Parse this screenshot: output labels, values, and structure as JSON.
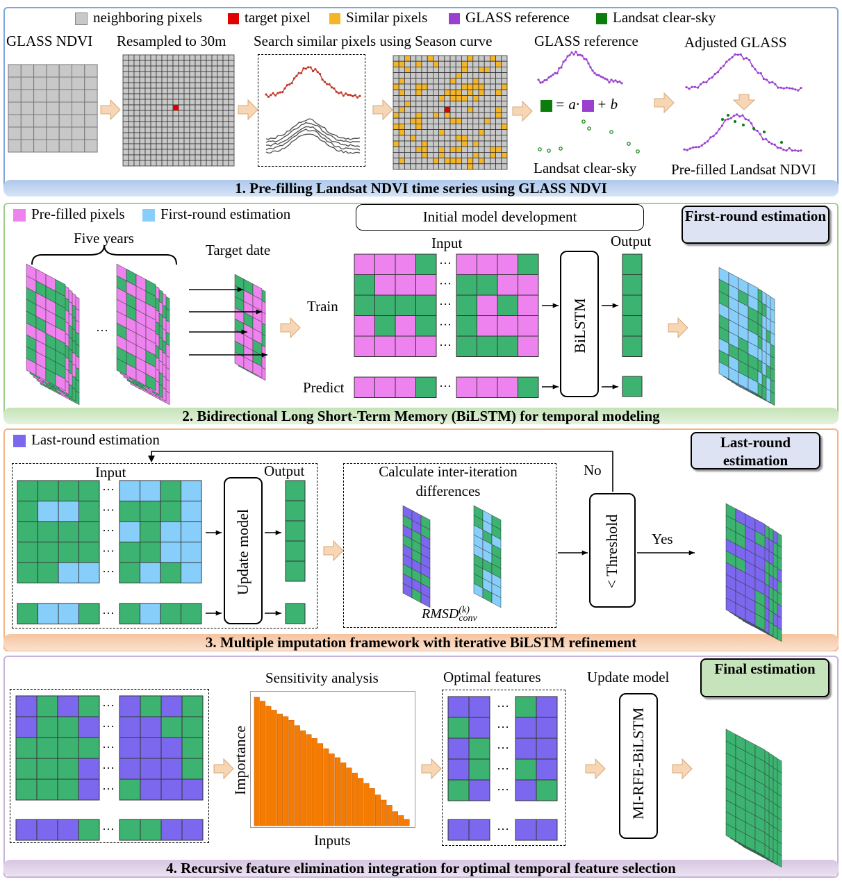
{
  "colors": {
    "green": "#3cb371",
    "pink": "#ee82ee",
    "lightblue": "#87cefa",
    "purple": "#7b68ee",
    "orange": "#f57c00",
    "gray": "#c8c8c8",
    "red": "#e00000",
    "yellow": "#f4b526",
    "darkgreen": "#0a7d0a",
    "violet": "#9a3fd0"
  },
  "panel1": {
    "legend": [
      "neighboring pixels",
      "target pixel",
      "Similar pixels",
      "GLASS reference",
      "Landsat clear-sky"
    ],
    "labels": {
      "glass_ndvi": "GLASS NDVI",
      "resampled": "Resampled to 30m",
      "search": "Search similar pixels using Season curve",
      "glass_ref": "GLASS reference",
      "adjusted": "Adjusted GLASS",
      "landsat_clear": "Landsat clear-sky",
      "prefilled": "Pre-filled Landsat NDVI",
      "equation_mid": "= a·",
      "equation_end": "+ b"
    },
    "title": "1. Pre-filling Landsat NDVI time series using GLASS NDVI"
  },
  "panel2": {
    "legend": [
      "Pre-filled pixels",
      "First-round estimation"
    ],
    "five_years": "Five years",
    "target_date": "Target date",
    "initial_model": "Initial model development",
    "input": "Input",
    "output": "Output",
    "train": "Train",
    "predict": "Predict",
    "bilstm": "BiLSTM",
    "estimation": "First-round estimation",
    "title": "2. Bidirectional Long Short-Term Memory (BiLSTM) for temporal modeling"
  },
  "panel3": {
    "legend": "Last-round estimation",
    "input": "Input",
    "output": "Output",
    "update_model": "Update model",
    "calc": "Calculate inter-iteration differences",
    "rmsd": "RMSD",
    "rmsd_sup": "(k)",
    "rmsd_sub": "conv",
    "no": "No",
    "yes": "Yes",
    "threshold": "< Threshold",
    "estimation": "Last-round estimation",
    "title": "3. Multiple imputation framework with iterative BiLSTM refinement"
  },
  "panel4": {
    "sensitivity": "Sensitivity analysis",
    "optimal": "Optimal features",
    "update_model": "Update model",
    "importance": "Importance",
    "inputs": "Inputs",
    "mi_rfe": "MI-RFE-BiLSTM",
    "estimation": "Final estimation",
    "title": "4. Recursive feature elimination integration for optimal temporal feature selection",
    "importance_values": [
      1.0,
      0.97,
      0.93,
      0.9,
      0.87,
      0.85,
      0.82,
      0.78,
      0.74,
      0.71,
      0.68,
      0.64,
      0.6,
      0.56,
      0.53,
      0.49,
      0.45,
      0.41,
      0.37,
      0.33,
      0.29,
      0.24,
      0.2,
      0.16,
      0.11,
      0.08,
      0.05
    ]
  }
}
